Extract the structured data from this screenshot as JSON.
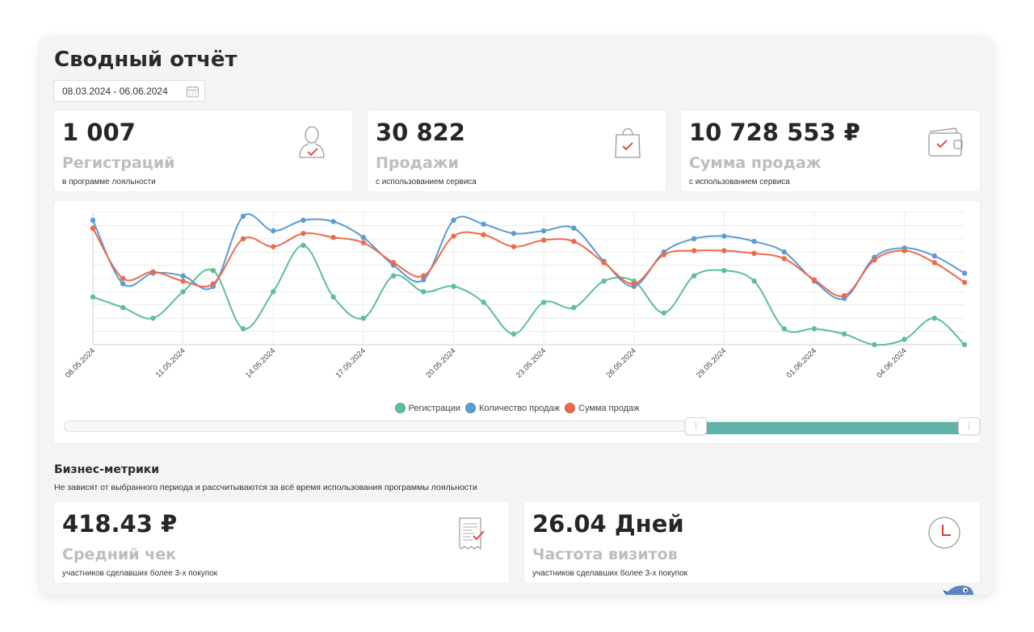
{
  "page": {
    "title": "Сводный отчёт",
    "date_range": "08.03.2024 - 06.06.2024"
  },
  "kpis": [
    {
      "value": "1 007",
      "label": "Регистраций",
      "sub": "в программе лояльности",
      "icon": "user-check-icon"
    },
    {
      "value": "30 822",
      "label": "Продажи",
      "sub": "с использованием сервиса",
      "icon": "shopping-bag-check-icon"
    },
    {
      "value": "10 728 553 ₽",
      "label": "Сумма продаж",
      "sub": "с использованием сервиса",
      "icon": "wallet-check-icon"
    }
  ],
  "business": {
    "title": "Бизнес-метрики",
    "subtitle": "Не зависят от выбранного периода и рассчитываются за всё время использования программы лояльности",
    "metrics": [
      {
        "value": "418.43 ₽",
        "label": "Средний чек",
        "sub": "участников сделавших более 3-х покупок",
        "icon": "receipt-check-icon"
      },
      {
        "value": "26.04 Дней",
        "label": "Частота визитов",
        "sub": "участников сделавших более 3-х покупок",
        "icon": "clock-icon"
      }
    ]
  },
  "colors": {
    "registrations": "#5dbf98",
    "sales_count": "#5b9bd5",
    "sales_sum": "#ed6a4b",
    "slider": "#5fb3a8"
  },
  "slider": {
    "range_start": 0.69,
    "range_end": 1.0
  },
  "chart_data": {
    "type": "line",
    "title": "",
    "xlabel": "",
    "ylabel": "",
    "x": [
      "08.05.2024",
      "09.05.2024",
      "10.05.2024",
      "11.05.2024",
      "12.05.2024",
      "13.05.2024",
      "14.05.2024",
      "15.05.2024",
      "16.05.2024",
      "17.05.2024",
      "18.05.2024",
      "19.05.2024",
      "20.05.2024",
      "21.05.2024",
      "22.05.2024",
      "23.05.2024",
      "24.05.2024",
      "25.05.2024",
      "26.05.2024",
      "27.05.2024",
      "28.05.2024",
      "29.05.2024",
      "30.05.2024",
      "31.05.2024",
      "01.06.2024",
      "02.06.2024",
      "03.06.2024",
      "04.06.2024",
      "05.06.2024",
      "06.06.2024"
    ],
    "tick_labels": [
      "08.05.2024",
      "11.05.2024",
      "14.05.2024",
      "17.05.2024",
      "20.05.2024",
      "23.05.2024",
      "26.05.2024",
      "29.05.2024",
      "01.06.2024",
      "04.06.2024"
    ],
    "ylim": [
      0,
      100
    ],
    "grid": true,
    "legend_position": "bottom",
    "series": [
      {
        "name": "Регистрации",
        "color": "#5dbf98",
        "values": [
          36,
          28,
          20,
          40,
          56,
          12,
          40,
          75,
          36,
          20,
          52,
          40,
          44,
          32,
          8,
          32,
          28,
          48,
          48,
          24,
          52,
          56,
          48,
          12,
          12,
          8,
          0,
          4,
          20,
          0
        ]
      },
      {
        "name": "Количество продаж",
        "color": "#5b9bd5",
        "values": [
          94,
          46,
          54,
          52,
          44,
          97,
          86,
          94,
          93,
          81,
          60,
          49,
          94,
          91,
          84,
          86,
          88,
          63,
          44,
          70,
          80,
          82,
          78,
          70,
          48,
          35,
          66,
          73,
          67,
          54
        ]
      },
      {
        "name": "Сумма продаж",
        "color": "#ed6a4b",
        "values": [
          88,
          50,
          55,
          48,
          46,
          80,
          74,
          84,
          81,
          77,
          62,
          52,
          82,
          83,
          74,
          79,
          78,
          62,
          46,
          68,
          71,
          71,
          69,
          65,
          49,
          37,
          64,
          71,
          62,
          47
        ]
      }
    ]
  }
}
